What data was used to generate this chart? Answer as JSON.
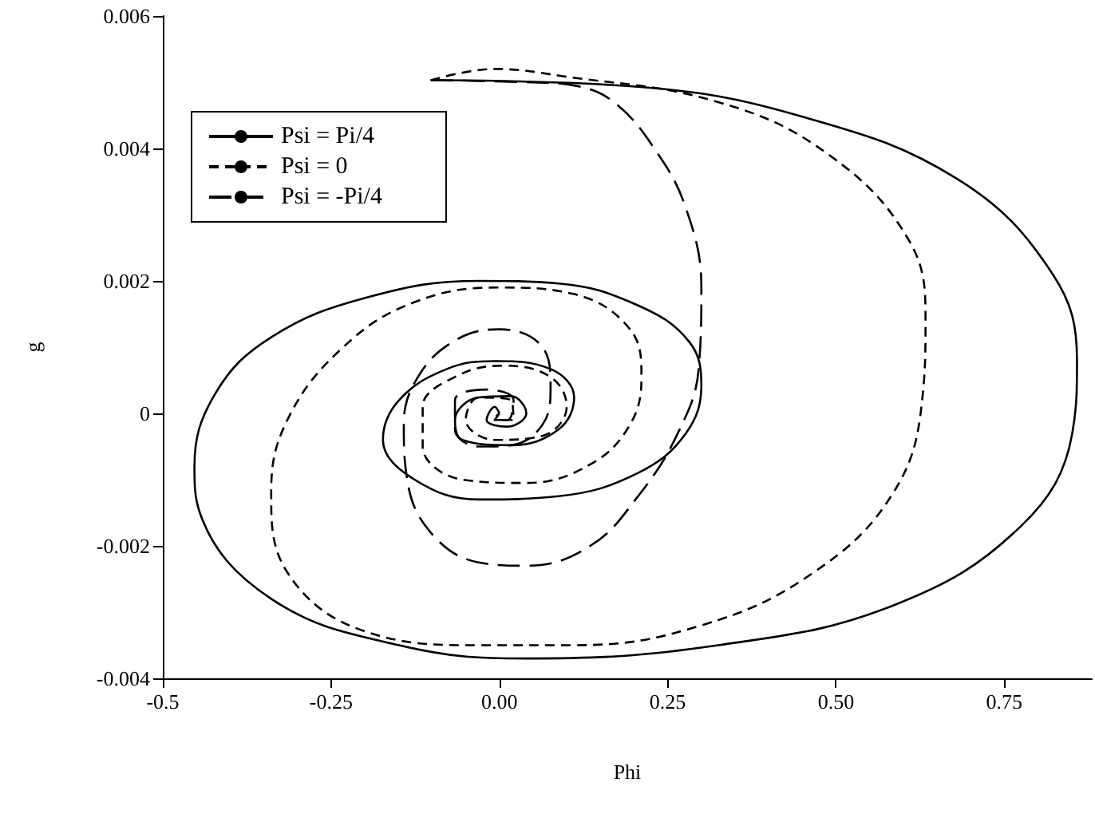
{
  "chart_data": {
    "type": "line",
    "xlabel": "Phi",
    "ylabel": "g",
    "xlim": [
      -0.5,
      0.88
    ],
    "ylim": [
      -0.004,
      0.006
    ],
    "xticks": [
      -0.5,
      -0.25,
      {
        "value": 0,
        "label": "0.00"
      },
      {
        "value": 0.25,
        "label": "0.25"
      },
      {
        "value": 0.5,
        "label": "0.50"
      },
      0.75
    ],
    "yticks": [
      -0.004,
      -0.002,
      0,
      0.002,
      0.004,
      0.006
    ],
    "legend": "top left",
    "grid": false,
    "marker": "none",
    "series": [
      {
        "name": "Psi = Pi/4",
        "color": "#000000",
        "line_style": "solid",
        "x": [
          -0.102,
          0.206,
          0.443,
          0.68,
          0.822,
          0.858,
          0.851,
          0.775,
          0.585,
          0.325,
          0.04,
          -0.149,
          -0.339,
          -0.445,
          -0.453,
          -0.422,
          -0.339,
          -0.197,
          -0.031,
          0.088,
          0.206,
          0.282,
          0.3,
          0.277,
          0.206,
          0.088,
          -0.031,
          -0.126,
          -0.173,
          -0.149,
          -0.078,
          -0.007,
          0.076,
          0.111,
          0.088,
          0.017,
          -0.055,
          -0.066,
          -0.031,
          0.017,
          0.04,
          0.012,
          -0.019,
          -0.007,
          0
        ],
        "values": [
          0.00503,
          0.00493,
          0.0045,
          0.00354,
          0.0021,
          0.0008,
          -0.0003,
          -0.0017,
          -0.0029,
          -0.0035,
          -0.0037,
          -0.0035,
          -0.0028,
          -0.0015,
          -0.0008,
          0.0003,
          0.00115,
          0.00175,
          0.002,
          0.00196,
          0.00163,
          0.00108,
          0.00043,
          -0.0003,
          -0.0009,
          -0.00125,
          -0.0013,
          -0.001,
          -0.0004,
          0.0002,
          0.00067,
          0.00079,
          0.00067,
          0.00024,
          -0.00024,
          -0.00048,
          -0.0004,
          -0.0001,
          0.00024,
          0.00026,
          0,
          -0.0002,
          -0.0001,
          0.0001,
          0
        ]
      },
      {
        "name": "Psi = 0",
        "color": "#000000",
        "line_style": "dashed",
        "x": [
          -0.102,
          -0.007,
          0.088,
          0.325,
          0.49,
          0.609,
          0.633,
          0.628,
          0.585,
          0.467,
          0.3,
          0.111,
          -0.031,
          -0.197,
          -0.315,
          -0.339,
          -0.315,
          -0.232,
          -0.126,
          0,
          0.111,
          0.194,
          0.211,
          0.194,
          0.135,
          0.04,
          -0.055,
          -0.114,
          -0.114,
          -0.066,
          0.005,
          0.076,
          0.1,
          0.064,
          -0.007,
          -0.05,
          -0.031,
          0.017,
          0.021,
          -0.007,
          0
        ],
        "values": [
          0.00503,
          0.0052,
          0.0051,
          0.0047,
          0.0039,
          0.0026,
          0.0014,
          0.0002,
          -0.0012,
          -0.0024,
          -0.0032,
          -0.0035,
          -0.0035,
          -0.0033,
          -0.0024,
          -0.0012,
          -0.0001,
          0.001,
          0.00168,
          0.0019,
          0.0018,
          0.00127,
          0.00055,
          -0.00017,
          -0.00077,
          -0.00105,
          -0.001,
          -0.0005,
          0.0001,
          0.00055,
          0.00072,
          0.00055,
          0.0001,
          -0.00034,
          -0.0004,
          -0.0001,
          0.00024,
          0.0002,
          -0.0001,
          -0.0001,
          0
        ]
      },
      {
        "name": "Psi = -Pi/4",
        "color": "#000000",
        "line_style": "dashed",
        "x": [
          -0.102,
          0.04,
          0.111,
          0.17,
          0.23,
          0.277,
          0.3,
          0.296,
          0.265,
          0.206,
          0.135,
          0.04,
          -0.031,
          -0.102,
          -0.137,
          -0.142,
          -0.121,
          -0.066,
          0,
          0.064,
          0.076,
          0.064,
          0.017,
          -0.031,
          -0.066,
          -0.066,
          -0.019,
          0.021,
          0.012,
          -0.012,
          0
        ],
        "values": [
          0.00503,
          0.005,
          0.00495,
          0.0047,
          0.004,
          0.0031,
          0.0019,
          0.00067,
          -0.0003,
          -0.00125,
          -0.002,
          -0.0023,
          -0.00225,
          -0.0018,
          -0.001,
          -0.00017,
          0.00055,
          0.0011,
          0.00127,
          0.001,
          0.0004,
          -0.00017,
          -0.00048,
          -0.0005,
          -0.00024,
          0.0002,
          0.00036,
          0.0002,
          -0.0001,
          -0.0001,
          0
        ]
      }
    ]
  }
}
